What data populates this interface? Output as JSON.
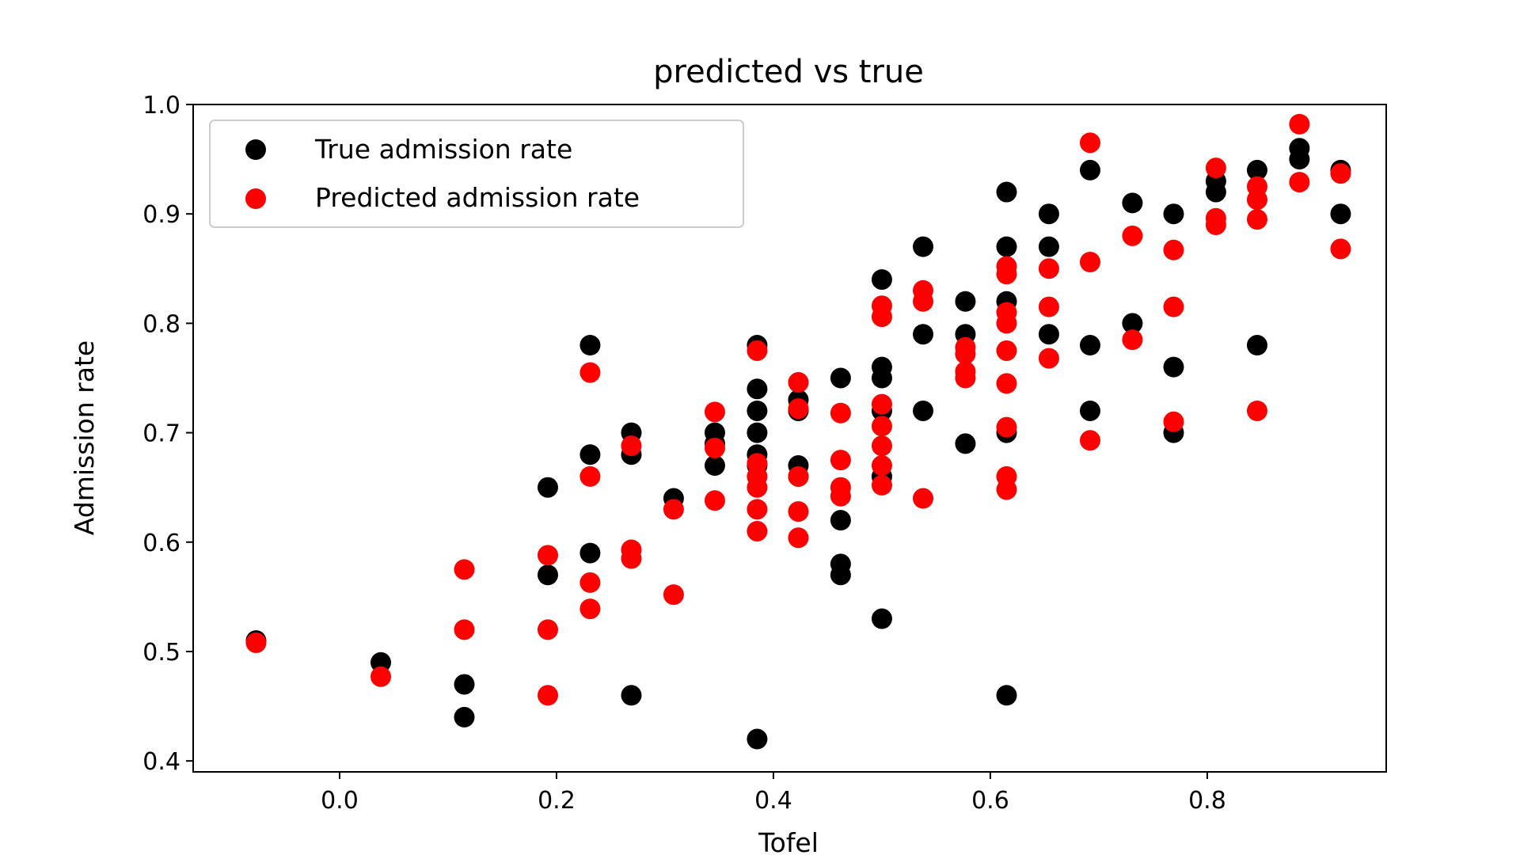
{
  "chart_data": {
    "type": "scatter",
    "title": "predicted vs true",
    "xlabel": "Tofel",
    "ylabel": "Admission rate",
    "xlim": [
      -0.135,
      0.965
    ],
    "ylim": [
      0.39,
      1.0
    ],
    "xticks": [
      0.0,
      0.2,
      0.4,
      0.6,
      0.8
    ],
    "xtick_labels": [
      "0.0",
      "0.2",
      "0.4",
      "0.6",
      "0.8"
    ],
    "yticks": [
      0.4,
      0.5,
      0.6,
      0.7,
      0.8,
      0.9,
      1.0
    ],
    "ytick_labels": [
      "0.4",
      "0.5",
      "0.6",
      "0.7",
      "0.8",
      "0.9",
      "1.0"
    ],
    "grid": false,
    "legend_position": "top-left",
    "series": [
      {
        "name": "True admission rate",
        "color": "#000000",
        "points": [
          [
            -0.077,
            0.51
          ],
          [
            0.038,
            0.49
          ],
          [
            0.115,
            0.47
          ],
          [
            0.115,
            0.44
          ],
          [
            0.192,
            0.65
          ],
          [
            0.192,
            0.57
          ],
          [
            0.231,
            0.78
          ],
          [
            0.231,
            0.68
          ],
          [
            0.231,
            0.59
          ],
          [
            0.269,
            0.7
          ],
          [
            0.269,
            0.68
          ],
          [
            0.269,
            0.46
          ],
          [
            0.308,
            0.64
          ],
          [
            0.346,
            0.7
          ],
          [
            0.346,
            0.69
          ],
          [
            0.346,
            0.67
          ],
          [
            0.385,
            0.78
          ],
          [
            0.385,
            0.74
          ],
          [
            0.385,
            0.72
          ],
          [
            0.385,
            0.7
          ],
          [
            0.385,
            0.68
          ],
          [
            0.385,
            0.67
          ],
          [
            0.385,
            0.42
          ],
          [
            0.423,
            0.73
          ],
          [
            0.423,
            0.72
          ],
          [
            0.423,
            0.67
          ],
          [
            0.423,
            0.66
          ],
          [
            0.462,
            0.75
          ],
          [
            0.462,
            0.62
          ],
          [
            0.462,
            0.58
          ],
          [
            0.462,
            0.57
          ],
          [
            0.5,
            0.84
          ],
          [
            0.5,
            0.76
          ],
          [
            0.5,
            0.75
          ],
          [
            0.5,
            0.72
          ],
          [
            0.5,
            0.66
          ],
          [
            0.5,
            0.53
          ],
          [
            0.538,
            0.87
          ],
          [
            0.538,
            0.79
          ],
          [
            0.538,
            0.72
          ],
          [
            0.577,
            0.82
          ],
          [
            0.577,
            0.79
          ],
          [
            0.577,
            0.69
          ],
          [
            0.615,
            0.92
          ],
          [
            0.615,
            0.87
          ],
          [
            0.615,
            0.82
          ],
          [
            0.615,
            0.7
          ],
          [
            0.615,
            0.46
          ],
          [
            0.654,
            0.9
          ],
          [
            0.654,
            0.87
          ],
          [
            0.654,
            0.79
          ],
          [
            0.692,
            0.94
          ],
          [
            0.692,
            0.78
          ],
          [
            0.692,
            0.72
          ],
          [
            0.731,
            0.91
          ],
          [
            0.731,
            0.8
          ],
          [
            0.769,
            0.9
          ],
          [
            0.769,
            0.76
          ],
          [
            0.769,
            0.7
          ],
          [
            0.808,
            0.93
          ],
          [
            0.808,
            0.92
          ],
          [
            0.846,
            0.94
          ],
          [
            0.846,
            0.78
          ],
          [
            0.885,
            0.96
          ],
          [
            0.885,
            0.95
          ],
          [
            0.923,
            0.94
          ],
          [
            0.923,
            0.9
          ]
        ]
      },
      {
        "name": "Predicted admission rate",
        "color": "#ff0000",
        "points": [
          [
            -0.077,
            0.508
          ],
          [
            0.038,
            0.477
          ],
          [
            0.115,
            0.575
          ],
          [
            0.115,
            0.52
          ],
          [
            0.192,
            0.588
          ],
          [
            0.192,
            0.52
          ],
          [
            0.192,
            0.46
          ],
          [
            0.231,
            0.755
          ],
          [
            0.231,
            0.66
          ],
          [
            0.231,
            0.563
          ],
          [
            0.231,
            0.539
          ],
          [
            0.269,
            0.688
          ],
          [
            0.269,
            0.593
          ],
          [
            0.269,
            0.585
          ],
          [
            0.308,
            0.63
          ],
          [
            0.308,
            0.552
          ],
          [
            0.346,
            0.719
          ],
          [
            0.346,
            0.686
          ],
          [
            0.346,
            0.638
          ],
          [
            0.385,
            0.775
          ],
          [
            0.385,
            0.672
          ],
          [
            0.385,
            0.66
          ],
          [
            0.385,
            0.65
          ],
          [
            0.385,
            0.63
          ],
          [
            0.385,
            0.61
          ],
          [
            0.423,
            0.746
          ],
          [
            0.423,
            0.722
          ],
          [
            0.423,
            0.66
          ],
          [
            0.423,
            0.628
          ],
          [
            0.423,
            0.604
          ],
          [
            0.462,
            0.718
          ],
          [
            0.462,
            0.675
          ],
          [
            0.462,
            0.65
          ],
          [
            0.462,
            0.642
          ],
          [
            0.5,
            0.816
          ],
          [
            0.5,
            0.806
          ],
          [
            0.5,
            0.726
          ],
          [
            0.5,
            0.706
          ],
          [
            0.5,
            0.688
          ],
          [
            0.5,
            0.67
          ],
          [
            0.5,
            0.652
          ],
          [
            0.538,
            0.83
          ],
          [
            0.538,
            0.82
          ],
          [
            0.538,
            0.64
          ],
          [
            0.577,
            0.778
          ],
          [
            0.577,
            0.772
          ],
          [
            0.577,
            0.756
          ],
          [
            0.577,
            0.75
          ],
          [
            0.615,
            0.852
          ],
          [
            0.615,
            0.845
          ],
          [
            0.615,
            0.81
          ],
          [
            0.615,
            0.8
          ],
          [
            0.615,
            0.775
          ],
          [
            0.615,
            0.745
          ],
          [
            0.615,
            0.705
          ],
          [
            0.615,
            0.66
          ],
          [
            0.615,
            0.648
          ],
          [
            0.654,
            0.85
          ],
          [
            0.654,
            0.815
          ],
          [
            0.654,
            0.768
          ],
          [
            0.692,
            0.965
          ],
          [
            0.692,
            0.856
          ],
          [
            0.692,
            0.693
          ],
          [
            0.731,
            0.88
          ],
          [
            0.731,
            0.785
          ],
          [
            0.769,
            0.867
          ],
          [
            0.769,
            0.815
          ],
          [
            0.769,
            0.71
          ],
          [
            0.808,
            0.942
          ],
          [
            0.808,
            0.896
          ],
          [
            0.808,
            0.89
          ],
          [
            0.846,
            0.925
          ],
          [
            0.846,
            0.913
          ],
          [
            0.846,
            0.895
          ],
          [
            0.846,
            0.72
          ],
          [
            0.885,
            0.982
          ],
          [
            0.885,
            0.929
          ],
          [
            0.923,
            0.937
          ],
          [
            0.923,
            0.868
          ]
        ]
      }
    ]
  }
}
